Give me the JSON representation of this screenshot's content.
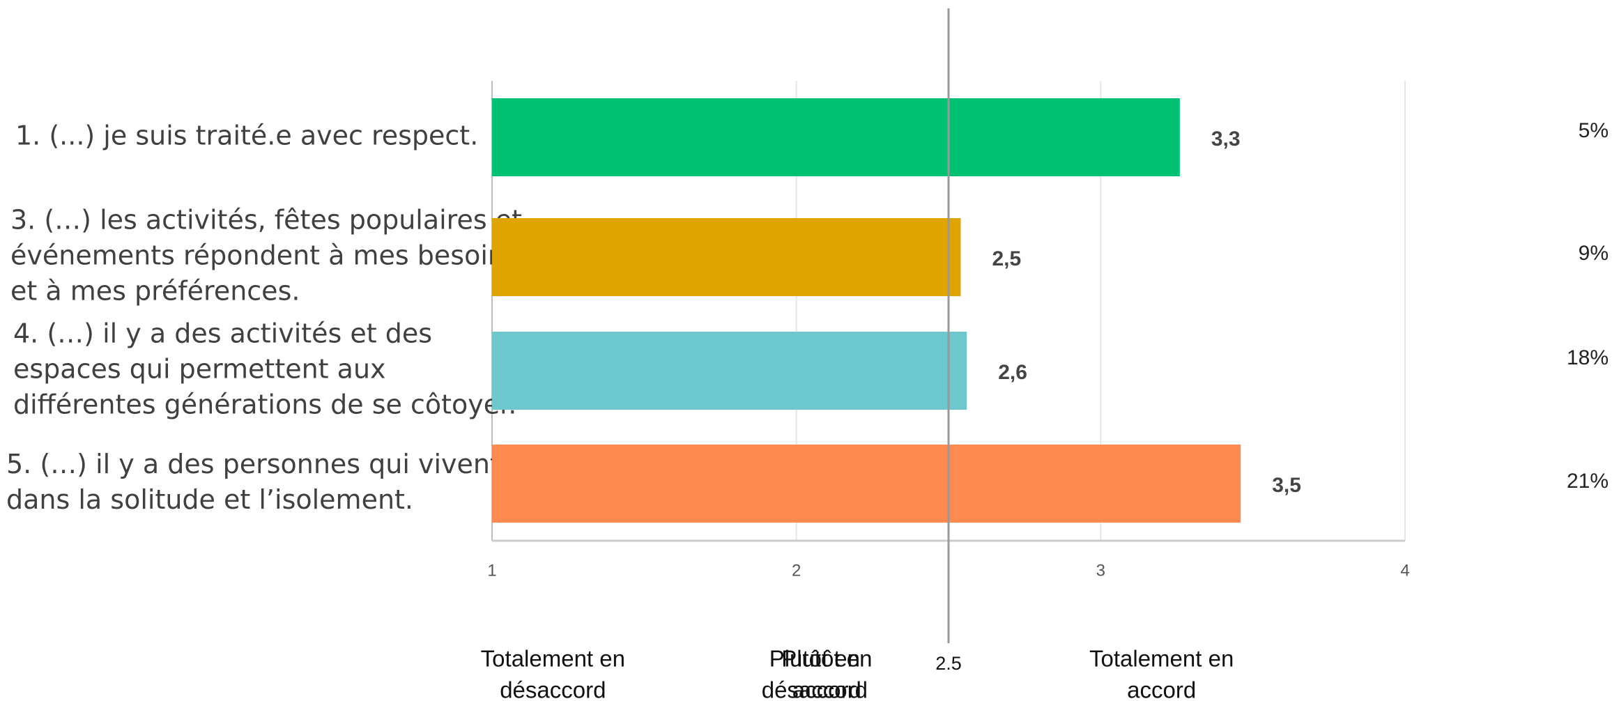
{
  "chart_data": {
    "type": "bar",
    "orientation": "horizontal",
    "categories": [
      [
        "1. (...) je suis traité.e avec respect."
      ],
      [
        "3. (…) les activités, fêtes populaires et",
        "événements répondent à mes besoins",
        "et à mes préférences."
      ],
      [
        "4. (…) il y a des activités et des",
        "espaces qui permettent aux",
        "différentes générations de se côtoyer."
      ],
      [
        "5. (…) il y a des personnes qui vivent",
        "dans la solitude et l’isolement."
      ]
    ],
    "values": [
      3.26,
      2.54,
      2.56,
      3.46
    ],
    "value_labels": [
      "3,3",
      "2,5",
      "2,6",
      "3,5"
    ],
    "colors": [
      "#00c072",
      "#e0a400",
      "#6cc8cc",
      "#ff8a50"
    ],
    "right_labels": [
      "5%",
      "9%",
      "18%",
      "21%"
    ],
    "xlim": [
      1,
      4
    ],
    "xticks": [
      1,
      2,
      3,
      4
    ],
    "grid": true,
    "reference_line": 2.5,
    "scale_labels": [
      {
        "value": 1.2,
        "lines": [
          "Totalement en",
          "désaccord"
        ]
      },
      {
        "value": 2.06,
        "lines": [
          "Plutôt en",
          "désaccord"
        ]
      },
      {
        "value": 2.1,
        "lines": [
          "Plutôt en",
          "accord"
        ]
      },
      {
        "value": 3.2,
        "lines": [
          "Totalement en",
          "accord"
        ]
      }
    ]
  }
}
